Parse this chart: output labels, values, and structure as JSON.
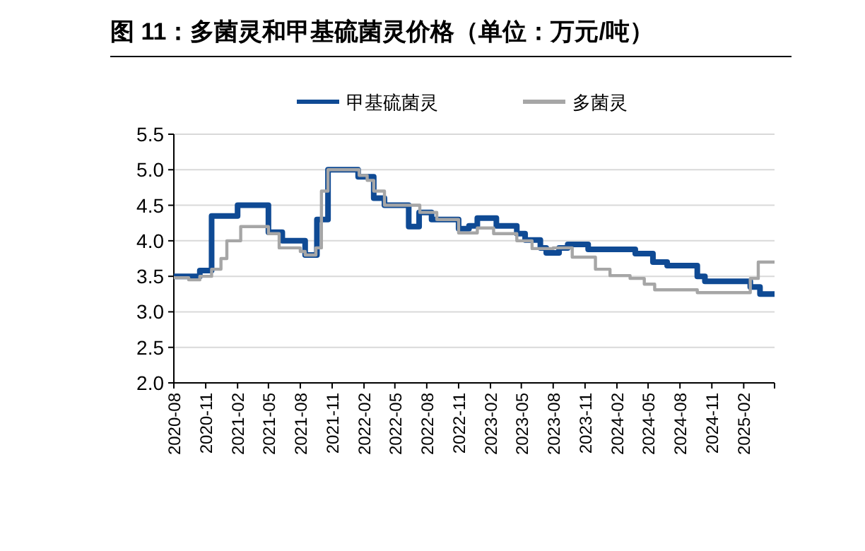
{
  "chart_data": {
    "type": "step",
    "title": "图 11：多菌灵和甲基硫菌灵价格（单位：万元/吨）",
    "xlim": [
      "2020-08",
      "2025-05"
    ],
    "xticks": [
      {
        "value": "2020-08",
        "label": "2020-08"
      },
      {
        "value": "2020-11",
        "label": "2020-11"
      },
      {
        "value": "2021-02",
        "label": "2021-02"
      },
      {
        "value": "2021-05",
        "label": "2021-05"
      },
      {
        "value": "2021-08",
        "label": "2021-08"
      },
      {
        "value": "2021-11",
        "label": "2021-11"
      },
      {
        "value": "2022-02",
        "label": "2022-02"
      },
      {
        "value": "2022-05",
        "label": "2022-05"
      },
      {
        "value": "2022-08",
        "label": "2022-08"
      },
      {
        "value": "2022-11",
        "label": "2022-11"
      },
      {
        "value": "2023-02",
        "label": "2023-02"
      },
      {
        "value": "2023-05",
        "label": "2023-05"
      },
      {
        "value": "2023-08",
        "label": "2023-08"
      },
      {
        "value": "2023-11",
        "label": "2023-11"
      },
      {
        "value": "2024-02",
        "label": "2024-02"
      },
      {
        "value": "2024-05",
        "label": "2024-05"
      },
      {
        "value": "2024-08",
        "label": "2024-08"
      },
      {
        "value": "2024-11",
        "label": "2024-11"
      },
      {
        "value": "2025-02",
        "label": "2025-02"
      },
      {
        "value": "2025-05",
        "label": null
      }
    ],
    "ylim": [
      2.0,
      5.5
    ],
    "yticks": [
      {
        "value": 2.0,
        "label": "2.0"
      },
      {
        "value": 2.5,
        "label": "2.5"
      },
      {
        "value": 3.0,
        "label": "3.0"
      },
      {
        "value": 3.5,
        "label": "3.5"
      },
      {
        "value": 4.0,
        "label": "4.0"
      },
      {
        "value": 4.5,
        "label": "4.5"
      },
      {
        "value": 5.0,
        "label": "5.0"
      },
      {
        "value": 5.5,
        "label": "5.5"
      }
    ],
    "grid": "y",
    "legend": "top",
    "series": [
      {
        "name": "甲基硫菌灵",
        "color": "#0f4a94",
        "x": [
          "2020-08-01",
          "2020-10-15",
          "2020-11-18",
          "2021-02-01",
          "2021-05-01",
          "2021-06-10",
          "2021-08-15",
          "2021-09-18",
          "2021-10-20",
          "2022-01-15",
          "2022-03-01",
          "2022-04-01",
          "2022-06-10",
          "2022-07-10",
          "2022-08-15",
          "2022-11-01",
          "2022-12-01",
          "2022-12-25",
          "2023-02-18",
          "2023-04-18",
          "2023-05-12",
          "2023-06-25",
          "2023-07-12",
          "2023-08-18",
          "2023-09-12",
          "2023-11-10",
          "2024-03-25",
          "2024-05-15",
          "2024-06-25",
          "2024-09-20",
          "2024-10-12",
          "2025-02-20",
          "2025-03-20",
          "2025-05-01"
        ],
        "values": [
          3.5,
          3.58,
          4.35,
          4.5,
          4.12,
          4.0,
          3.8,
          4.3,
          5.0,
          4.9,
          4.6,
          4.5,
          4.2,
          4.4,
          4.3,
          4.17,
          4.21,
          4.32,
          4.21,
          4.1,
          4.01,
          3.9,
          3.83,
          3.9,
          3.95,
          3.88,
          3.82,
          3.7,
          3.65,
          3.5,
          3.43,
          3.35,
          3.25,
          3.25
        ]
      },
      {
        "name": "多菌灵",
        "color": "#a6a6a6",
        "x": [
          "2020-08-01",
          "2020-09-13",
          "2020-10-15",
          "2020-11-18",
          "2020-12-15",
          "2021-01-01",
          "2021-02-10",
          "2021-05-01",
          "2021-06-01",
          "2021-08-01",
          "2021-08-15",
          "2021-09-15",
          "2021-10-01",
          "2021-10-20",
          "2022-01-18",
          "2022-02-10",
          "2022-03-01",
          "2022-04-01",
          "2022-07-12",
          "2022-08-30",
          "2022-11-01",
          "2022-12-25",
          "2023-02-10",
          "2023-04-18",
          "2023-06-01",
          "2023-08-01",
          "2023-09-25",
          "2023-12-01",
          "2024-01-12",
          "2024-03-10",
          "2024-04-20",
          "2024-05-20",
          "2024-09-20",
          "2025-02-20",
          "2025-03-15",
          "2025-05-01"
        ],
        "values": [
          3.48,
          3.45,
          3.5,
          3.6,
          3.75,
          4.0,
          4.2,
          4.1,
          3.9,
          3.85,
          3.8,
          3.9,
          4.7,
          5.0,
          4.92,
          4.85,
          4.7,
          4.5,
          4.4,
          4.3,
          4.11,
          4.18,
          4.1,
          4.0,
          3.89,
          3.9,
          3.77,
          3.6,
          3.51,
          3.47,
          3.39,
          3.31,
          3.27,
          3.47,
          3.7,
          3.7
        ]
      }
    ]
  }
}
